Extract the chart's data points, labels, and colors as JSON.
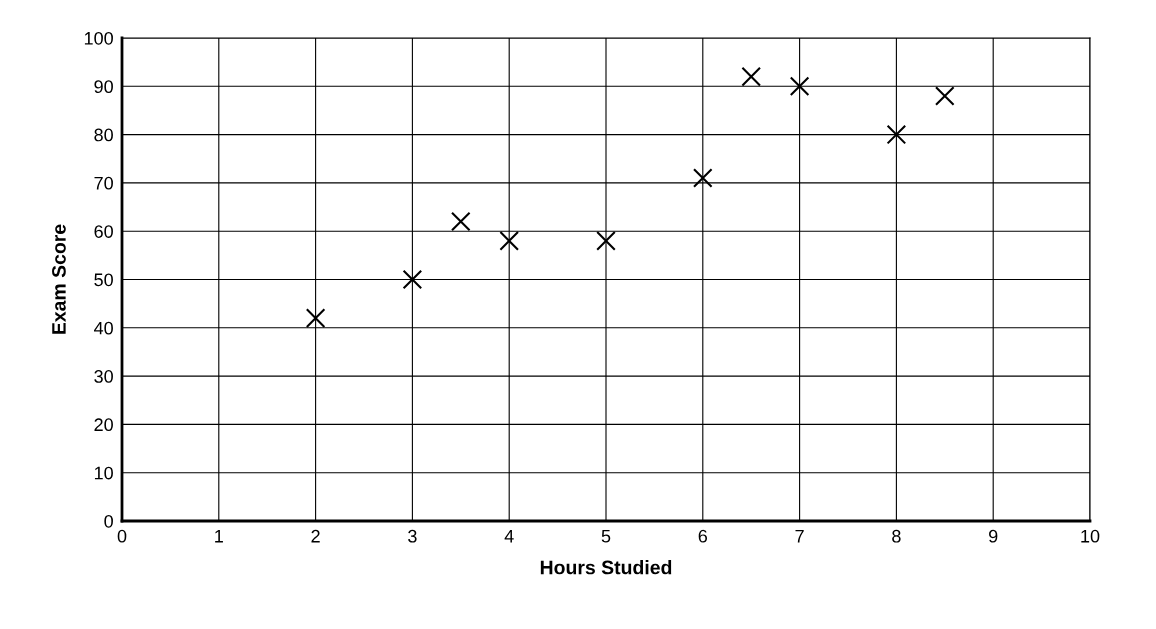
{
  "chart_data": {
    "type": "scatter",
    "xlabel": "Hours Studied",
    "ylabel": "Exam Score",
    "x": [
      2,
      3,
      3.5,
      4,
      5,
      6,
      6.5,
      7,
      8,
      8.5
    ],
    "series": [
      {
        "color": "#000000",
        "values": [
          42,
          50,
          62,
          58,
          58,
          71,
          92,
          90,
          80,
          88
        ]
      }
    ],
    "xlim": [
      0,
      10
    ],
    "xticks": [
      0,
      1,
      2,
      3,
      4,
      5,
      6,
      7,
      8,
      9,
      10
    ],
    "ylim": [
      0,
      100
    ],
    "yticks": [
      0,
      10,
      20,
      30,
      40,
      50,
      60,
      70,
      80,
      90,
      100
    ],
    "grid": true,
    "marker": "cross",
    "legend": false
  }
}
